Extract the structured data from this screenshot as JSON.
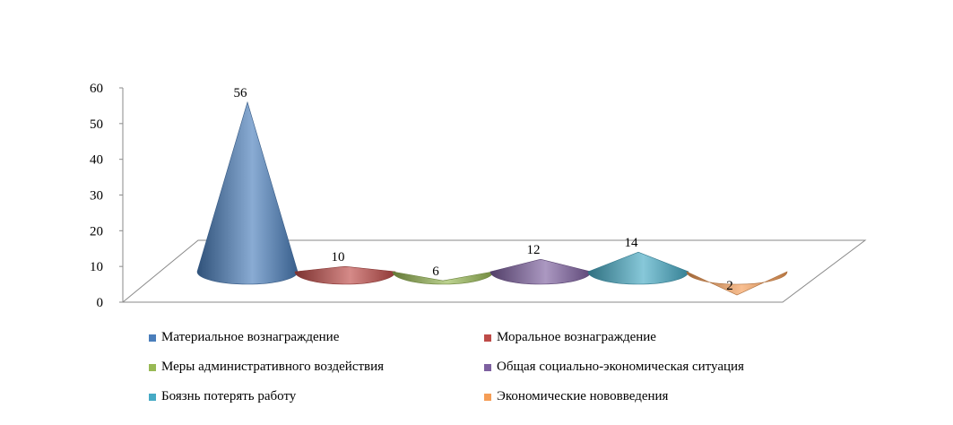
{
  "chart_data": {
    "type": "bar",
    "subtype": "3d-cone",
    "title": "",
    "xlabel": "",
    "ylabel": "",
    "ylim": [
      0,
      60
    ],
    "yticks": [
      0,
      10,
      20,
      30,
      40,
      50,
      60
    ],
    "grid": false,
    "legend_position": "bottom",
    "categories": [
      "Материальное вознаграждение",
      "Моральное вознаграждение",
      "Меры административного воздействия",
      "Общая социально-экономическая ситуация",
      "Боязнь потерять работу",
      "Экономические нововведения"
    ],
    "values": [
      56,
      10,
      6,
      12,
      14,
      2
    ],
    "colors": [
      "#4a7ebb",
      "#be4b48",
      "#98b954",
      "#7d60a0",
      "#46aac5",
      "#f59d56"
    ]
  }
}
